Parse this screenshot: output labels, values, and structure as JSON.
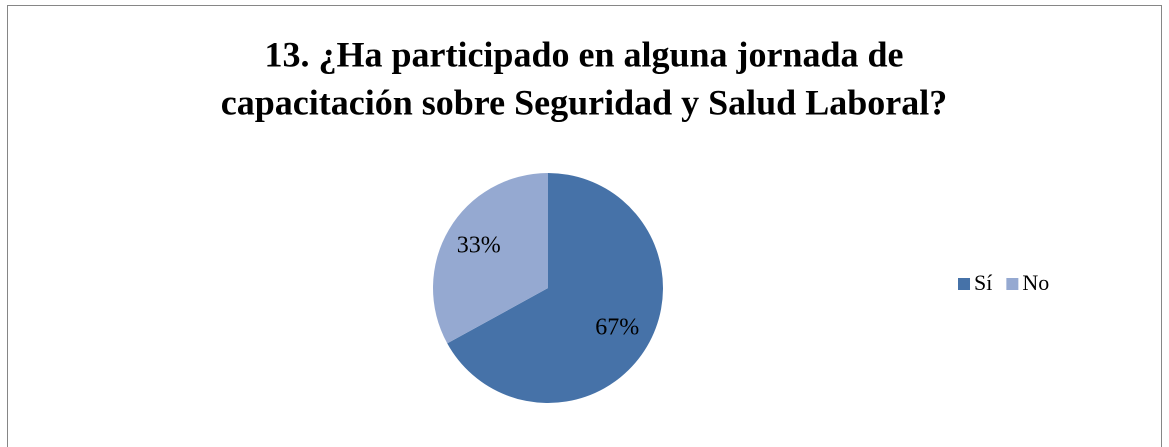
{
  "chart_data": {
    "type": "pie",
    "title": [
      "13. ¿Ha participado en alguna jornada de",
      "capacitación sobre Seguridad y Salud Laboral?"
    ],
    "categories": [
      "Sí",
      "No"
    ],
    "values": [
      67,
      33
    ],
    "value_labels": [
      "67%",
      "33%"
    ],
    "colors": [
      "#4672a8",
      "#95a9d1"
    ],
    "legend": "right"
  }
}
